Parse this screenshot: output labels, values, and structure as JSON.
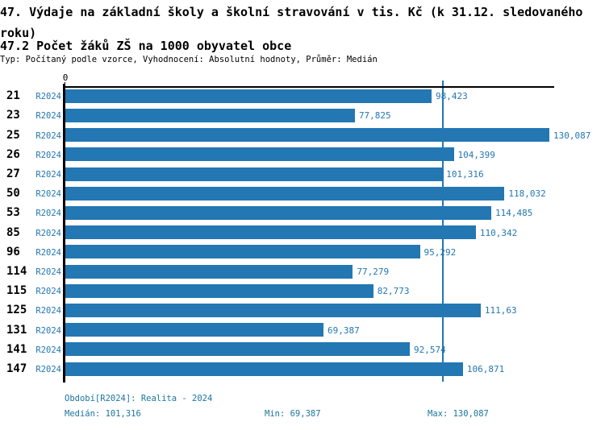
{
  "header": {
    "title": "47. Výdaje na základní školy a školní stravování v tis. Kč (k 31.12. sledovaného roku)",
    "subtitle": "47.2 Počet žáků ZŠ na 1000 obyvatel obce",
    "meta": "Typ: Počítaný podle vzorce, Vyhodnocení: Absolutní hodnoty, Průměr: Medián"
  },
  "chart_data": {
    "type": "bar",
    "orientation": "horizontal",
    "categories": [
      "21",
      "23",
      "25",
      "26",
      "27",
      "50",
      "53",
      "85",
      "96",
      "114",
      "115",
      "125",
      "131",
      "141",
      "147"
    ],
    "series_label": "R2024",
    "values": [
      98.423,
      77.825,
      130.087,
      104.399,
      101.316,
      118.032,
      114.485,
      110.342,
      95.292,
      77.279,
      82.773,
      111.63,
      69.387,
      92.574,
      106.871
    ],
    "value_labels": [
      "98,423",
      "77,825",
      "130,087",
      "104,399",
      "101,316",
      "118,032",
      "114,485",
      "110,342",
      "95,292",
      "77,279",
      "82,773",
      "111,63",
      "69,387",
      "92,574",
      "106,871"
    ],
    "axis_origin_label": "0",
    "xlim": [
      0,
      131.5
    ],
    "median_value": 101.316,
    "grid": "off",
    "bar_color": "#2377b3",
    "label_color": "#2377b3",
    "median_line_color": "#2377b3",
    "footer_text_color": "#1a759f"
  },
  "footer": {
    "period": "Období[R2024]: Realita - 2024",
    "median": "Medián: 101,316",
    "min": "Min: 69,387",
    "max": "Max: 130,087"
  }
}
